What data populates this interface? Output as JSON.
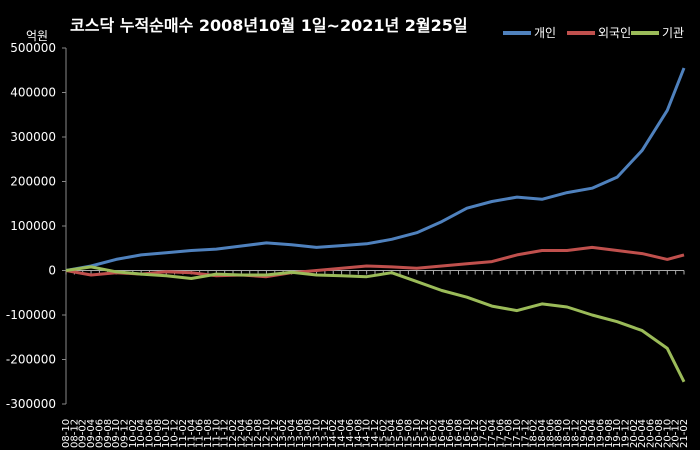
{
  "chart_data": {
    "type": "line",
    "title": "코스닥 누적순매수 2008년10월 1일~2021년 2월25일",
    "ylabel": "억원",
    "ylim": [
      -300000,
      500000
    ],
    "yticks": [
      500000,
      400000,
      300000,
      200000,
      100000,
      0,
      -100000,
      -200000,
      -300000
    ],
    "grid": false,
    "legend_position": "top-right",
    "background": "#000000",
    "x_tick_labels": [
      "08-10",
      "08-12",
      "09-02",
      "09-04",
      "09-06",
      "09-08",
      "09-10",
      "09-12",
      "10-02",
      "10-04",
      "10-06",
      "10-08",
      "10-10",
      "10-12",
      "11-02",
      "11-04",
      "11-06",
      "11-08",
      "11-10",
      "11-12",
      "12-02",
      "12-04",
      "12-06",
      "12-08",
      "12-10",
      "12-12",
      "13-02",
      "13-04",
      "13-06",
      "13-08",
      "13-10",
      "13-12",
      "14-02",
      "14-04",
      "14-06",
      "14-08",
      "14-10",
      "14-12",
      "15-02",
      "15-04",
      "15-06",
      "15-08",
      "15-10",
      "15-12",
      "16-02",
      "16-04",
      "16-06",
      "16-08",
      "16-10",
      "16-12",
      "17-02",
      "17-04",
      "17-06",
      "17-08",
      "17-10",
      "17-12",
      "18-02",
      "18-04",
      "18-06",
      "18-08",
      "18-10",
      "18-12",
      "19-02",
      "19-04",
      "19-06",
      "19-08",
      "19-10",
      "19-12",
      "20-02",
      "20-04",
      "20-06",
      "20-08",
      "20-10",
      "20-12",
      "21-02"
    ],
    "x": [
      "2008-10",
      "2009-04",
      "2009-10",
      "2010-04",
      "2010-10",
      "2011-04",
      "2011-10",
      "2012-04",
      "2012-10",
      "2013-04",
      "2013-10",
      "2014-04",
      "2014-10",
      "2015-04",
      "2015-10",
      "2016-04",
      "2016-10",
      "2017-04",
      "2017-10",
      "2018-04",
      "2018-10",
      "2019-04",
      "2019-10",
      "2020-04",
      "2020-10",
      "2021-02"
    ],
    "series": [
      {
        "name": "개인",
        "color": "#4F81BD",
        "values": [
          0,
          10000,
          25000,
          35000,
          40000,
          45000,
          48000,
          55000,
          62000,
          58000,
          52000,
          56000,
          60000,
          70000,
          85000,
          110000,
          140000,
          155000,
          165000,
          160000,
          175000,
          185000,
          210000,
          270000,
          360000,
          455000
        ]
      },
      {
        "name": "외국인",
        "color": "#C0504D",
        "values": [
          0,
          -10000,
          -5000,
          -8000,
          -3000,
          -5000,
          -12000,
          -10000,
          -14000,
          -5000,
          0,
          5000,
          10000,
          8000,
          5000,
          10000,
          15000,
          20000,
          35000,
          45000,
          45000,
          52000,
          45000,
          38000,
          25000,
          35000
        ]
      },
      {
        "name": "기관",
        "color": "#9BBB59",
        "values": [
          0,
          8000,
          -3000,
          -8000,
          -12000,
          -18000,
          -8000,
          -10000,
          -10000,
          -4000,
          -10000,
          -12000,
          -14000,
          -5000,
          -25000,
          -45000,
          -60000,
          -80000,
          -90000,
          -75000,
          -82000,
          -100000,
          -115000,
          -135000,
          -175000,
          -250000
        ]
      }
    ]
  }
}
